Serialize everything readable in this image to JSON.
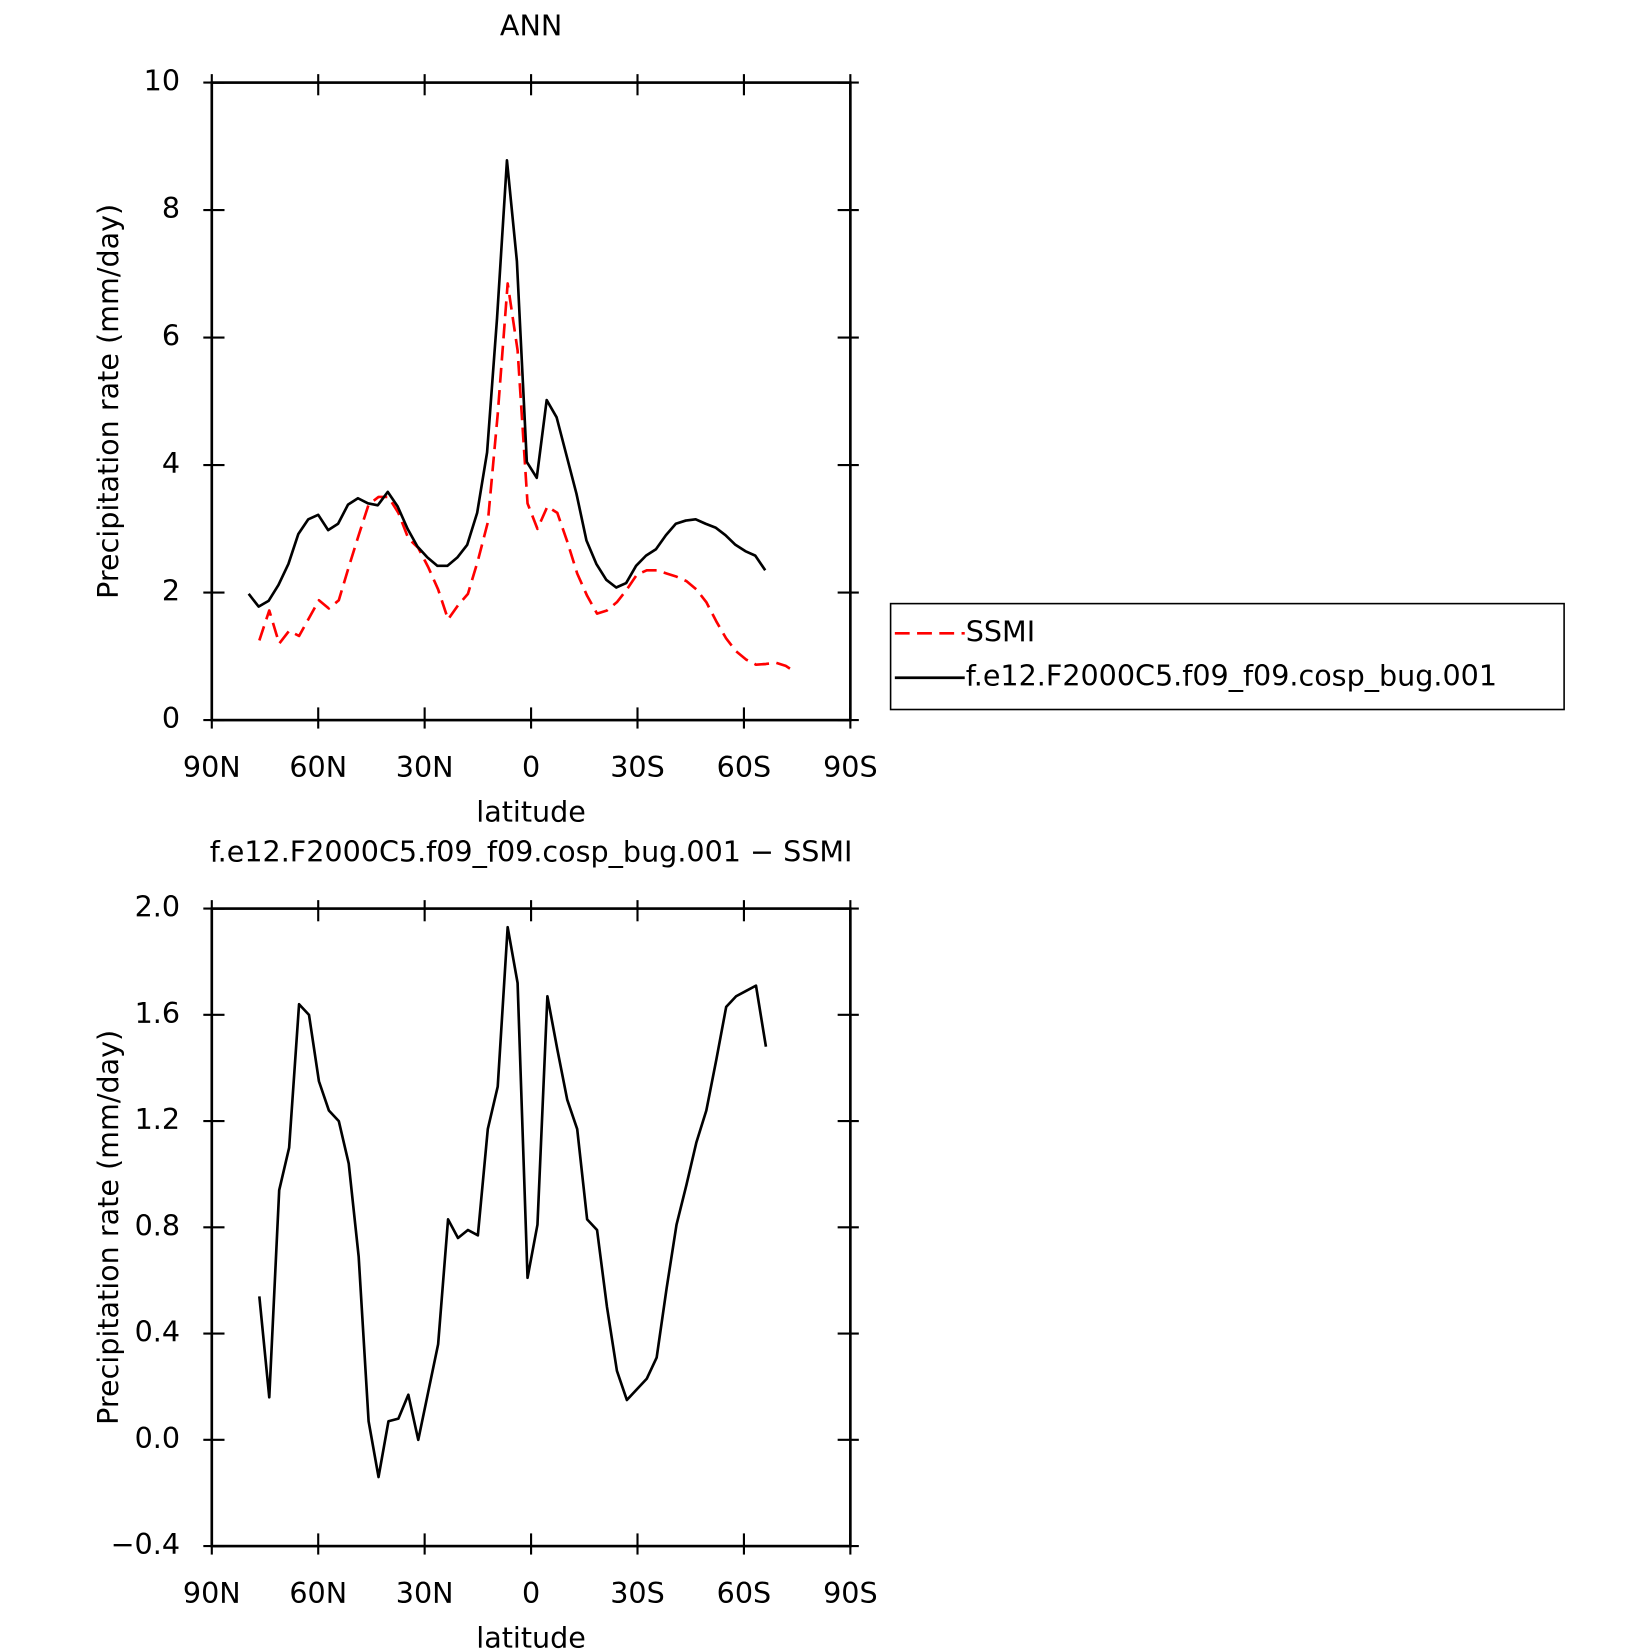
{
  "chart_data": [
    {
      "type": "line",
      "title": "ANN",
      "xlabel": "latitude",
      "ylabel": "Precipitation rate (mm/day)",
      "xlim": [
        90,
        -90
      ],
      "xticks": [
        {
          "value": 90,
          "label": "90N"
        },
        {
          "value": 60,
          "label": "60N"
        },
        {
          "value": 30,
          "label": "30N"
        },
        0,
        {
          "value": -30,
          "label": "30S"
        },
        {
          "value": -60,
          "label": "60S"
        },
        {
          "value": -90,
          "label": "90S"
        }
      ],
      "ylim": [
        0,
        10
      ],
      "yticks": [
        0,
        2,
        4,
        6,
        8,
        10
      ],
      "legend": "right",
      "series": [
        {
          "name": "SSMI",
          "color": "#ff0000",
          "line_style": "dashed",
          "x": [
            76.6,
            73.8,
            71.0,
            68.2,
            65.4,
            62.6,
            59.8,
            57.0,
            54.2,
            51.4,
            48.6,
            45.8,
            43.0,
            40.2,
            37.4,
            34.6,
            31.8,
            29.0,
            26.2,
            23.4,
            20.6,
            17.8,
            15.0,
            12.2,
            9.4,
            6.6,
            3.8,
            1.0,
            -1.8,
            -4.6,
            -7.4,
            -10.2,
            -13.0,
            -15.8,
            -18.6,
            -21.4,
            -24.2,
            -27.0,
            -29.8,
            -32.6,
            -35.4,
            -38.2,
            -41.0,
            -43.8,
            -46.6,
            -49.4,
            -52.2,
            -55.0,
            -57.8,
            -60.6,
            -63.4,
            -66.2,
            -69.0,
            -71.8,
            -74.6
          ],
          "values": [
            1.25,
            1.72,
            1.2,
            1.4,
            1.32,
            1.6,
            1.88,
            1.75,
            1.88,
            2.4,
            2.9,
            3.38,
            3.5,
            3.5,
            3.25,
            2.85,
            2.7,
            2.4,
            2.05,
            1.58,
            1.8,
            1.98,
            2.5,
            3.1,
            4.8,
            6.85,
            5.8,
            3.4,
            3.0,
            3.35,
            3.25,
            2.8,
            2.3,
            1.95,
            1.67,
            1.72,
            1.85,
            2.05,
            2.28,
            2.35,
            2.35,
            2.3,
            2.25,
            2.18,
            2.05,
            1.85,
            1.55,
            1.28,
            1.08,
            0.95,
            0.87,
            0.88,
            0.9,
            0.85,
            0.75
          ]
        },
        {
          "name": "f.e12.F2000C5.f09_f09.cosp_bug.001",
          "color": "#000000",
          "line_style": "solid",
          "x": [
            79.6,
            76.8,
            74.0,
            71.2,
            68.4,
            65.6,
            62.8,
            60.0,
            57.2,
            54.4,
            51.6,
            48.8,
            46.0,
            43.2,
            40.4,
            37.6,
            34.8,
            32.0,
            29.2,
            26.4,
            23.6,
            20.8,
            18.0,
            15.2,
            12.4,
            9.6,
            6.8,
            4.0,
            1.2,
            -1.6,
            -4.4,
            -7.2,
            -10.0,
            -12.8,
            -15.6,
            -18.4,
            -21.2,
            -24.0,
            -26.8,
            -29.6,
            -32.4,
            -35.2,
            -38.0,
            -40.8,
            -43.6,
            -46.4,
            -49.2,
            -52.0,
            -54.8,
            -57.6,
            -60.4,
            -63.2,
            -66.0
          ],
          "values": [
            1.98,
            1.78,
            1.87,
            2.12,
            2.45,
            2.92,
            3.15,
            3.22,
            2.98,
            3.08,
            3.38,
            3.48,
            3.4,
            3.37,
            3.58,
            3.35,
            3.0,
            2.72,
            2.55,
            2.42,
            2.42,
            2.55,
            2.75,
            3.25,
            4.2,
            6.3,
            8.78,
            7.2,
            4.05,
            3.8,
            5.02,
            4.75,
            4.15,
            3.55,
            2.82,
            2.45,
            2.2,
            2.08,
            2.15,
            2.42,
            2.58,
            2.68,
            2.9,
            3.08,
            3.13,
            3.15,
            3.08,
            3.02,
            2.9,
            2.75,
            2.65,
            2.58,
            2.35
          ]
        }
      ]
    },
    {
      "type": "line",
      "title": "f.e12.F2000C5.f09_f09.cosp_bug.001 − SSMI",
      "xlabel": "latitude",
      "ylabel": "Precipitation rate (mm/day)",
      "xlim": [
        90,
        -90
      ],
      "xticks": [
        {
          "value": 90,
          "label": "90N"
        },
        {
          "value": 60,
          "label": "60N"
        },
        {
          "value": 30,
          "label": "30N"
        },
        0,
        {
          "value": -30,
          "label": "30S"
        },
        {
          "value": -60,
          "label": "60S"
        },
        {
          "value": -90,
          "label": "90S"
        }
      ],
      "ylim": [
        -0.4,
        2.0
      ],
      "yticks": [
        {
          "value": -0.4,
          "label": "−0.4"
        },
        {
          "value": 0,
          "label": "0.0"
        },
        {
          "value": 0.4,
          "label": "0.4"
        },
        {
          "value": 0.8,
          "label": "0.8"
        },
        {
          "value": 1.2,
          "label": "1.2"
        },
        {
          "value": 1.6,
          "label": "1.6"
        },
        {
          "value": 2.0,
          "label": "2.0"
        }
      ],
      "series": [
        {
          "color": "#000000",
          "line_style": "solid",
          "x": [
            76.6,
            73.8,
            71.0,
            68.2,
            65.4,
            62.6,
            59.8,
            57.0,
            54.2,
            51.4,
            48.6,
            45.8,
            43.0,
            40.2,
            37.4,
            34.6,
            31.8,
            29.0,
            26.2,
            23.4,
            20.6,
            17.8,
            15.0,
            12.2,
            9.4,
            6.6,
            3.8,
            1.0,
            -1.8,
            -4.6,
            -7.4,
            -10.2,
            -13.0,
            -15.8,
            -18.6,
            -21.4,
            -24.2,
            -27.0,
            -29.8,
            -32.6,
            -35.4,
            -38.2,
            -41.0,
            -43.8,
            -46.6,
            -49.4,
            -52.2,
            -55.0,
            -57.8,
            -60.6,
            -63.4,
            -66.2
          ],
          "values": [
            0.54,
            0.16,
            0.94,
            1.1,
            1.64,
            1.6,
            1.35,
            1.24,
            1.2,
            1.04,
            0.69,
            0.07,
            -0.14,
            0.07,
            0.08,
            0.17,
            0.0,
            0.18,
            0.36,
            0.83,
            0.76,
            0.79,
            0.77,
            1.17,
            1.33,
            1.93,
            1.72,
            0.61,
            0.81,
            1.67,
            1.47,
            1.28,
            1.17,
            0.83,
            0.79,
            0.5,
            0.26,
            0.15,
            0.19,
            0.23,
            0.31,
            0.57,
            0.81,
            0.96,
            1.12,
            1.24,
            1.43,
            1.63,
            1.67,
            1.69,
            1.71,
            1.48
          ]
        }
      ]
    }
  ]
}
